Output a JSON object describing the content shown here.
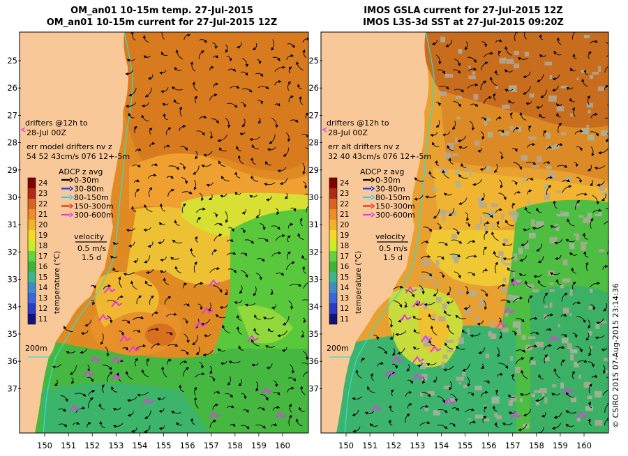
{
  "colors": {
    "land": "#f8c898",
    "coast": "#33ddcc",
    "frame": "#000000",
    "adcp": [
      "#000000",
      "#1838e8",
      "#38c8ff",
      "#e82818",
      "#e838e8"
    ]
  },
  "left_panel": {
    "title_line1": "OM_an01 10-15m temp. 27-Jul-2015",
    "title_line2": "OM_an01 10-15m current for 27-Jul-2015 12Z",
    "drifter_label_1": "drifters @12h to",
    "drifter_label_2": "28-Jul 00Z",
    "err_label": "err model drifters nv z",
    "err_values": "54 52 43cm/s 076 12+-5m",
    "depth_label": "200m"
  },
  "right_panel": {
    "title_line1": "IMOS GSLA current for 27-Jul-2015 12Z",
    "title_line2": "IMOS L3S-3d SST at 27-Jul-2015 09:20Z",
    "drifter_label_1": "drifters @12h to",
    "drifter_label_2": "28-Jul 00Z",
    "err_label": "err alt drifters nv z",
    "err_values": "32 40 43cm/s 076 12+-5m",
    "depth_label": "200m"
  },
  "legend": {
    "adcp_title": "ADCP z avg",
    "adcp_items": [
      "0-30m",
      "30-80m",
      "80-150m",
      "150-300m",
      "300-600m"
    ],
    "velocity_title": "velocity",
    "velocity_scale": "0.5 m/s",
    "velocity_time": "1.5 d",
    "colorbar_label": "temperature (°C)",
    "colorbar_ticks": [
      "24",
      "23",
      "22",
      "21",
      "20",
      "19",
      "18",
      "17",
      "16",
      "15",
      "14",
      "13",
      "12",
      "11"
    ],
    "colorbar_colors": [
      "#800000",
      "#b02818",
      "#d86420",
      "#f08c28",
      "#f0b428",
      "#f0dc28",
      "#c8ee28",
      "#64d23c",
      "#3cb43c",
      "#3cb48c",
      "#3c8cc8",
      "#3c64dc",
      "#283cc8",
      "#141478"
    ]
  },
  "axes": {
    "lat_ticks": [
      "25",
      "26",
      "27",
      "28",
      "29",
      "30",
      "31",
      "32",
      "33",
      "34",
      "35",
      "36",
      "37"
    ],
    "lon_ticks": [
      "150",
      "151",
      "152",
      "153",
      "154",
      "155",
      "156",
      "157",
      "158",
      "159",
      "160"
    ]
  },
  "credit": "© CSIRO 2015   07-Aug-2015 23:14:36"
}
